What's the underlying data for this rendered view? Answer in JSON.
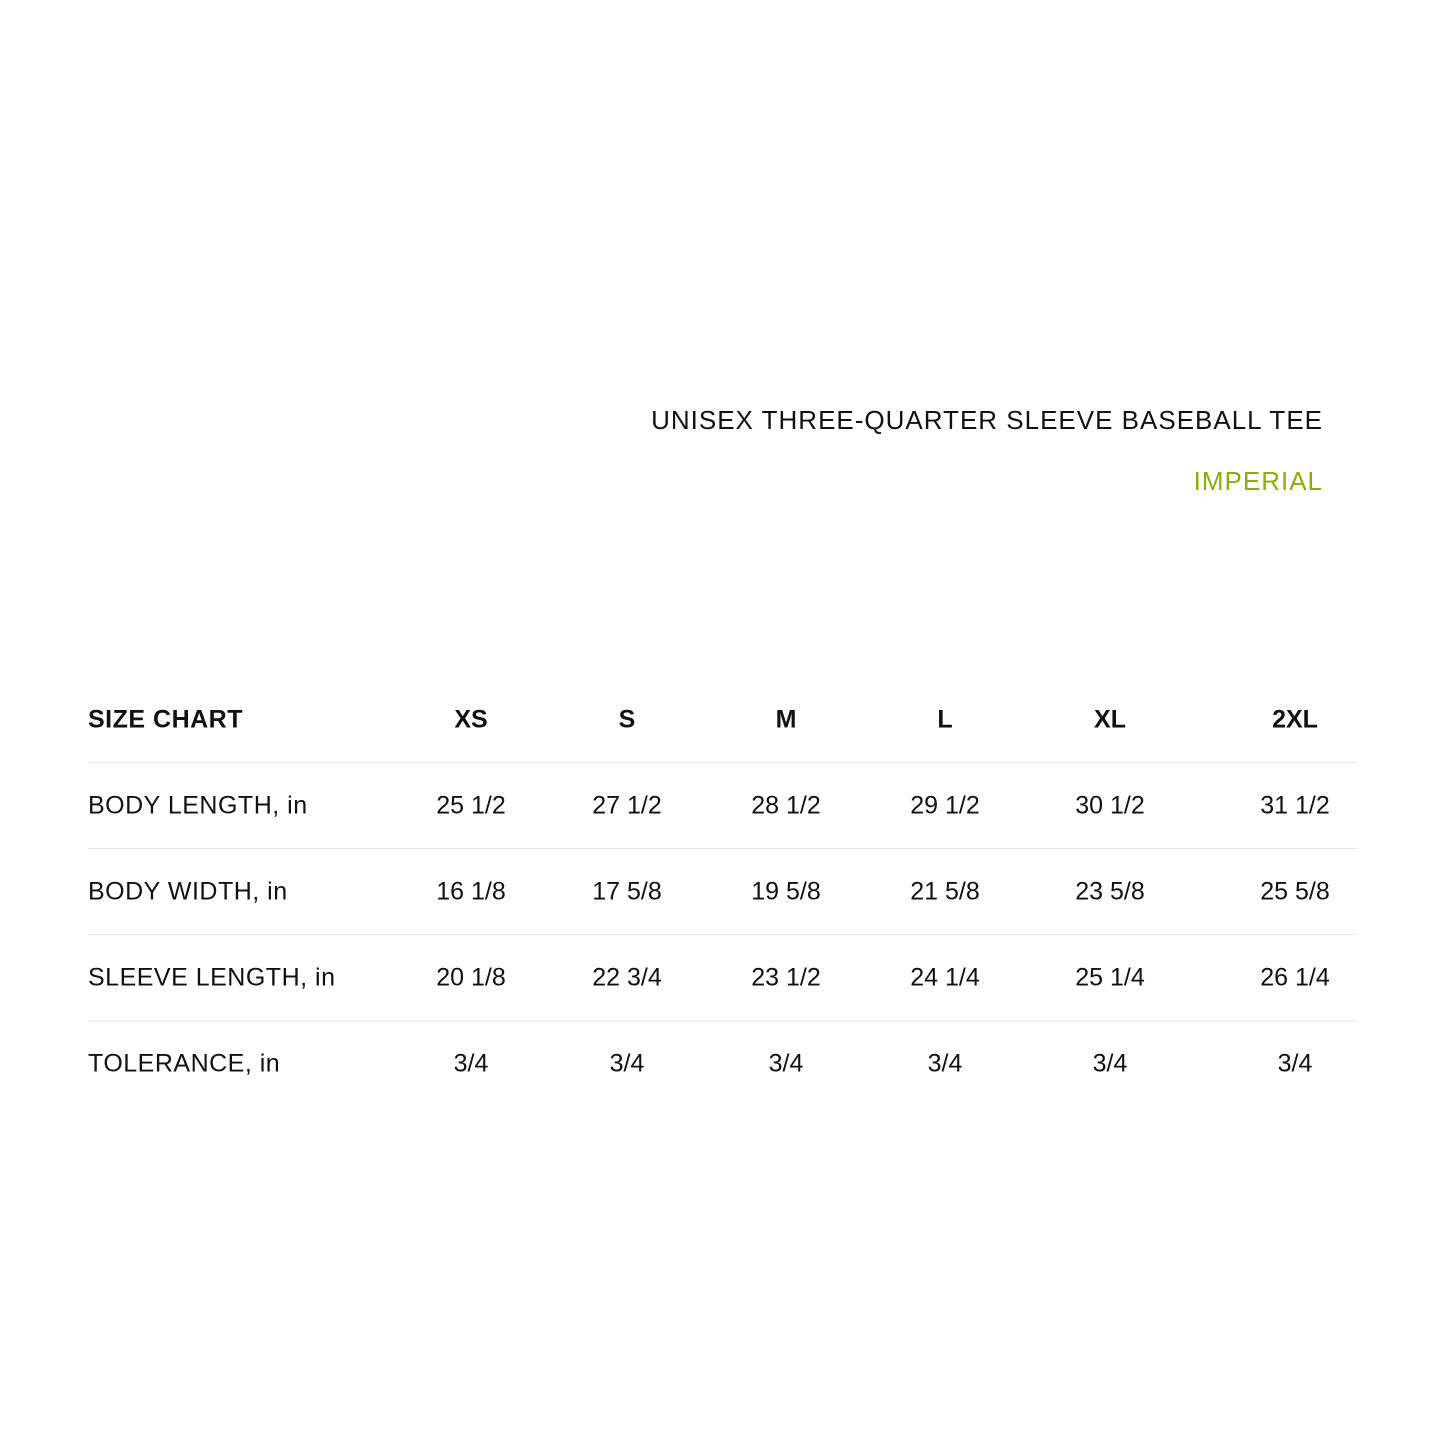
{
  "title": "UNISEX THREE-QUARTER SLEEVE BASEBALL TEE",
  "unit_system": "IMPERIAL",
  "colors": {
    "accent": "#8aad0e",
    "text": "#111111",
    "divider": "#e6e6e6"
  },
  "table": {
    "header_label": "SIZE CHART",
    "sizes": [
      "XS",
      "S",
      "M",
      "L",
      "XL",
      "2XL"
    ],
    "rows": [
      {
        "label": "BODY LENGTH, in",
        "values": [
          "25 1/2",
          "27 1/2",
          "28 1/2",
          "29 1/2",
          "30 1/2",
          "31 1/2"
        ]
      },
      {
        "label": "BODY WIDTH, in",
        "values": [
          "16 1/8",
          "17 5/8",
          "19 5/8",
          "21 5/8",
          "23 5/8",
          "25 5/8"
        ]
      },
      {
        "label": "SLEEVE LENGTH, in",
        "values": [
          "20 1/8",
          "22 3/4",
          "23 1/2",
          "24 1/4",
          "25 1/4",
          "26 1/4"
        ]
      },
      {
        "label": "TOLERANCE, in",
        "values": [
          "3/4",
          "3/4",
          "3/4",
          "3/4",
          "3/4",
          "3/4"
        ]
      }
    ]
  }
}
